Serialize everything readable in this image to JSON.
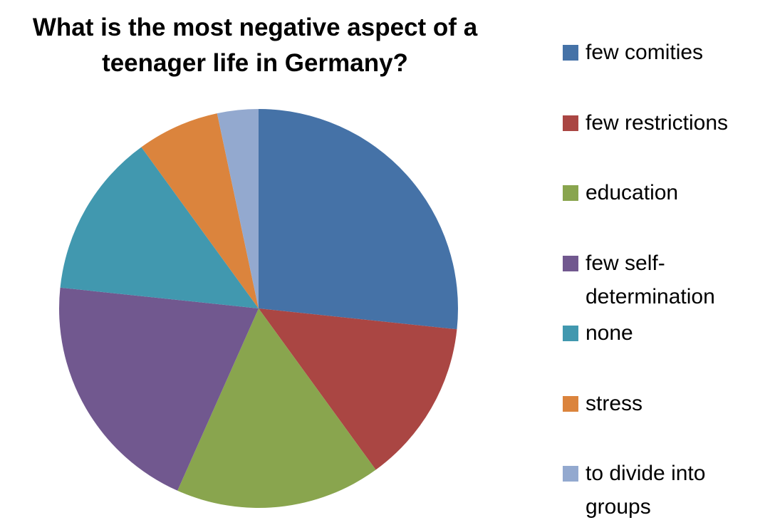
{
  "chart_data": {
    "type": "pie",
    "title": "What is the most negative aspect of a teenager life in Germany?",
    "categories": [
      "few comities",
      "few restrictions",
      "education",
      "few self-determination",
      "none",
      "stress",
      "to divide into groups"
    ],
    "values": [
      8,
      4,
      5,
      6,
      4,
      2,
      1
    ],
    "colors": [
      "#4572a7",
      "#aa4643",
      "#89a54e",
      "#71588f",
      "#4198af",
      "#db843d",
      "#93a9cf"
    ],
    "legend": "right"
  }
}
